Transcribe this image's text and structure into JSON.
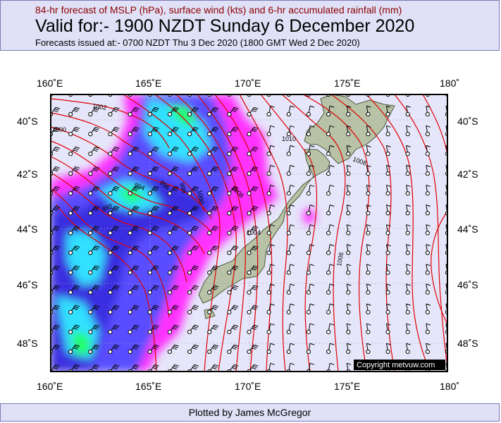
{
  "header": {
    "subtitle": "84-hr forecast of MSLP (hPa), surface wind (kts) and 6-hr accumulated rainfall (mm)",
    "title": "Valid for:- 1900 NZDT Sunday  6 December 2020",
    "issued": "Forecasts issued at:- 0700 NZDT Thu  3 Dec 2020 (1800 GMT Wed  2 Dec 2020)"
  },
  "map": {
    "lon_labels": [
      "160˚E",
      "165˚E",
      "170˚E",
      "175˚E",
      "180˚"
    ],
    "lat_labels": [
      "40˚S",
      "42˚S",
      "44˚S",
      "46˚S",
      "48˚S"
    ],
    "lon_values": [
      160,
      165,
      170,
      175,
      180
    ],
    "lat_values": [
      -40,
      -42,
      -44,
      -46,
      -48
    ],
    "isobar_labels": [
      "1002",
      "1000",
      "994",
      "996",
      "998",
      "1000",
      "992",
      "1010",
      "1008",
      "1008",
      "1004",
      "1006"
    ],
    "copyright": "Copyright metvuw.com",
    "colors": {
      "background": "#e6e6fa",
      "isobar": "#e00000",
      "land": "#b7c2a6",
      "heavy_rain": "#ff22ff",
      "very_heavy_rain": "#4040ff",
      "extreme_rain": "#00e0ff"
    }
  },
  "footer": {
    "credit": "Plotted by James McGregor"
  }
}
